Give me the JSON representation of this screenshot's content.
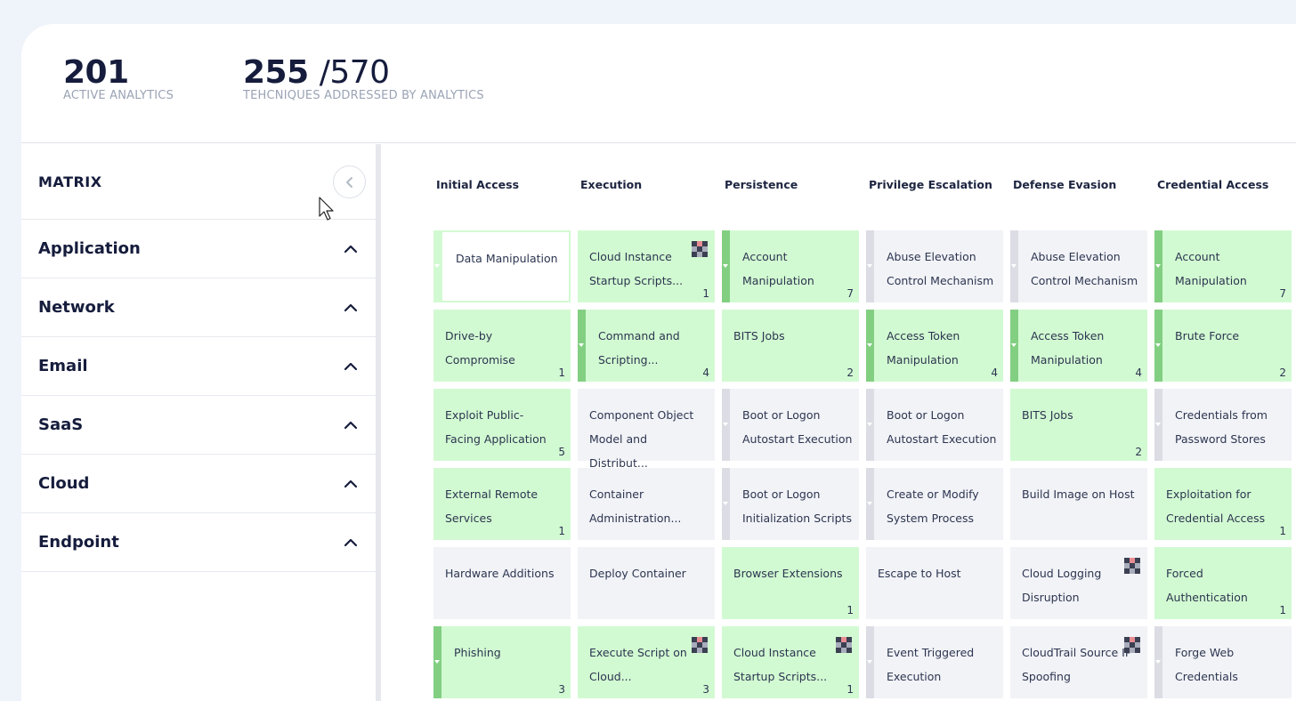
{
  "stats": {
    "active_count": "201",
    "active_label": "ACTIVE ANALYTICS",
    "techniques_count": "255",
    "techniques_total": "/570",
    "techniques_label": "TEHCNIQUES ADDRESSED BY ANALYTICS"
  },
  "sidebar": {
    "title": "MATRIX",
    "items": [
      {
        "label": "Application"
      },
      {
        "label": "Network"
      },
      {
        "label": "Email"
      },
      {
        "label": "SaaS"
      },
      {
        "label": "Cloud"
      },
      {
        "label": "Endpoint"
      }
    ]
  },
  "matrix": {
    "tactics": [
      "Initial Access",
      "Execution",
      "Persistence",
      "Privilege Escalation",
      "Defense Evasion",
      "Credential Access"
    ],
    "columns": [
      [
        {
          "name": "Data Manipulation",
          "count": "",
          "style": "outline",
          "sub": true,
          "badge": false
        },
        {
          "name": "Drive-by Compromise",
          "count": "1",
          "style": "green",
          "sub": false,
          "badge": false
        },
        {
          "name": "Exploit Public-Facing Application",
          "count": "5",
          "style": "green",
          "sub": false,
          "badge": false
        },
        {
          "name": "External Remote Services",
          "count": "1",
          "style": "green",
          "sub": false,
          "badge": false
        },
        {
          "name": "Hardware Additions",
          "count": "",
          "style": "grey",
          "sub": false,
          "badge": false
        },
        {
          "name": "Phishing",
          "count": "3",
          "style": "green",
          "sub": true,
          "badge": false
        }
      ],
      [
        {
          "name": "Cloud Instance Startup Scripts...",
          "count": "1",
          "style": "green",
          "sub": false,
          "badge": true
        },
        {
          "name": "Command and Scripting...",
          "count": "4",
          "style": "green",
          "sub": true,
          "badge": false
        },
        {
          "name": "Component Object Model and Distribut...",
          "count": "",
          "style": "grey",
          "sub": false,
          "badge": false
        },
        {
          "name": "Container Administration...",
          "count": "",
          "style": "grey",
          "sub": false,
          "badge": false
        },
        {
          "name": "Deploy Container",
          "count": "",
          "style": "grey",
          "sub": false,
          "badge": false
        },
        {
          "name": "Execute Script on Cloud...",
          "count": "3",
          "style": "green",
          "sub": false,
          "badge": true
        }
      ],
      [
        {
          "name": "Account Manipulation",
          "count": "7",
          "style": "green",
          "sub": true,
          "badge": false
        },
        {
          "name": "BITS Jobs",
          "count": "2",
          "style": "green",
          "sub": false,
          "badge": false
        },
        {
          "name": "Boot or Logon Autostart Execution",
          "count": "",
          "style": "grey",
          "sub": true,
          "badge": false
        },
        {
          "name": "Boot or Logon Initialization Scripts",
          "count": "",
          "style": "grey",
          "sub": true,
          "badge": false
        },
        {
          "name": "Browser Extensions",
          "count": "1",
          "style": "green",
          "sub": false,
          "badge": false
        },
        {
          "name": "Cloud Instance Startup Scripts...",
          "count": "1",
          "style": "green",
          "sub": false,
          "badge": true
        }
      ],
      [
        {
          "name": "Abuse Elevation Control Mechanism",
          "count": "",
          "style": "grey",
          "sub": true,
          "badge": false
        },
        {
          "name": "Access Token Manipulation",
          "count": "4",
          "style": "green",
          "sub": true,
          "badge": false
        },
        {
          "name": "Boot or Logon Autostart Execution",
          "count": "",
          "style": "grey",
          "sub": true,
          "badge": false
        },
        {
          "name": "Create or Modify System Process",
          "count": "",
          "style": "grey",
          "sub": true,
          "badge": false
        },
        {
          "name": "Escape to Host",
          "count": "",
          "style": "grey",
          "sub": false,
          "badge": false
        },
        {
          "name": "Event Triggered Execution",
          "count": "",
          "style": "grey",
          "sub": true,
          "badge": false
        }
      ],
      [
        {
          "name": "Abuse Elevation Control Mechanism",
          "count": "",
          "style": "grey",
          "sub": true,
          "badge": false
        },
        {
          "name": "Access Token Manipulation",
          "count": "4",
          "style": "green",
          "sub": true,
          "badge": false
        },
        {
          "name": "BITS Jobs",
          "count": "2",
          "style": "green",
          "sub": false,
          "badge": false
        },
        {
          "name": "Build Image on Host",
          "count": "",
          "style": "grey",
          "sub": false,
          "badge": false
        },
        {
          "name": "Cloud Logging Disruption",
          "count": "",
          "style": "grey",
          "sub": false,
          "badge": true
        },
        {
          "name": "CloudTrail Source IP Spoofing",
          "count": "",
          "style": "grey",
          "sub": false,
          "badge": true
        }
      ],
      [
        {
          "name": "Account Manipulation",
          "count": "7",
          "style": "green",
          "sub": true,
          "badge": false
        },
        {
          "name": "Brute Force",
          "count": "2",
          "style": "green",
          "sub": true,
          "badge": false
        },
        {
          "name": "Credentials from Password Stores",
          "count": "",
          "style": "grey",
          "sub": true,
          "badge": false
        },
        {
          "name": "Exploitation for Credential Access",
          "count": "1",
          "style": "green",
          "sub": false,
          "badge": false
        },
        {
          "name": "Forced Authentication",
          "count": "1",
          "style": "green",
          "sub": false,
          "badge": false
        },
        {
          "name": "Forge Web Credentials",
          "count": "",
          "style": "grey",
          "sub": true,
          "badge": false
        }
      ]
    ]
  },
  "colors": {
    "covered": "#d2fad2",
    "covered_bar": "#82cf82",
    "uncovered": "#f2f3f7",
    "uncovered_bar": "#dcdde4"
  },
  "icons": {
    "collapse": "chevron-left-icon",
    "section_toggle": "chevron-up-icon",
    "badge": "checker-badge-icon"
  }
}
